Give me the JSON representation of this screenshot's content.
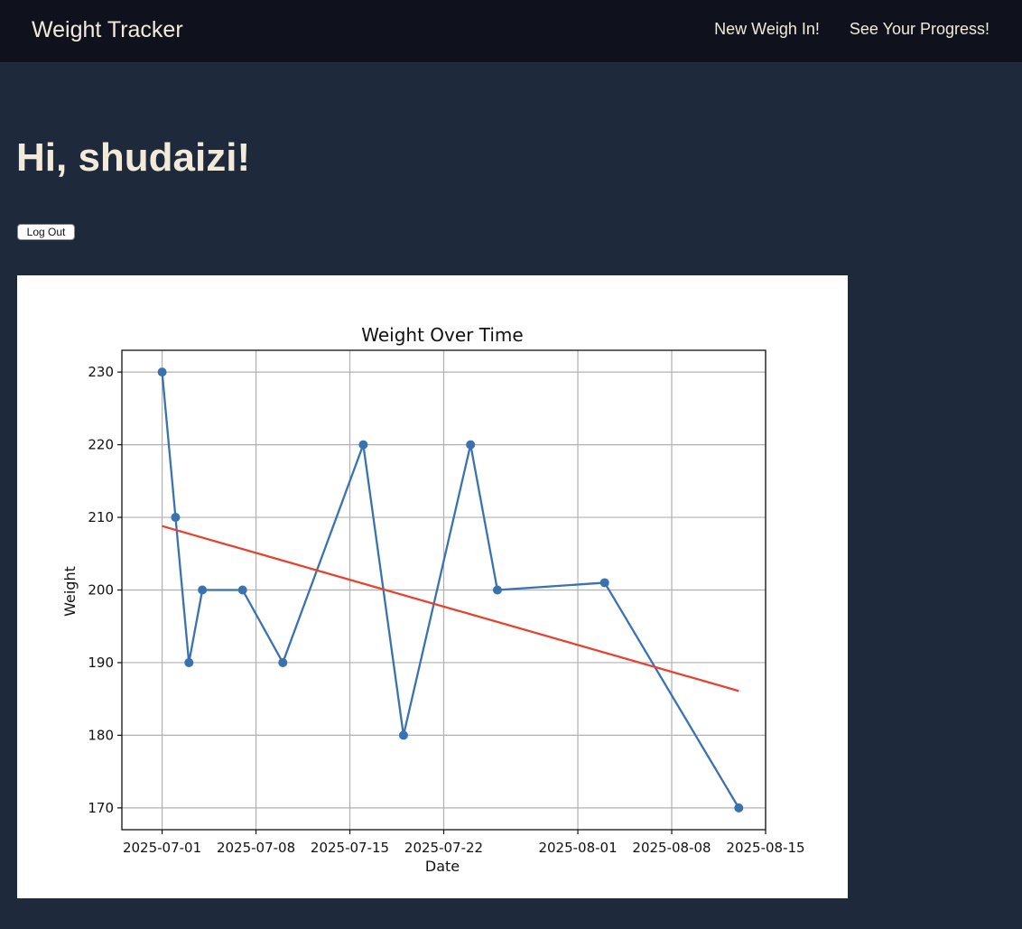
{
  "navbar": {
    "brand": "Weight Tracker",
    "links": [
      {
        "label": "New Weigh In!"
      },
      {
        "label": "See Your Progress!"
      }
    ]
  },
  "main": {
    "greeting": "Hi, shudaizi!",
    "logout_label": "Log Out"
  },
  "chart_data": {
    "type": "line",
    "title": "Weight Over Time",
    "xlabel": "Date",
    "ylabel": "Weight",
    "xlim": [
      "2025-06-28",
      "2025-08-15"
    ],
    "ylim": [
      167,
      233
    ],
    "x_ticks": [
      "2025-07-01",
      "2025-07-08",
      "2025-07-15",
      "2025-07-22",
      "2025-08-01",
      "2025-08-08",
      "2025-08-15"
    ],
    "y_ticks": [
      170,
      180,
      190,
      200,
      210,
      220,
      230
    ],
    "grid": true,
    "series": [
      {
        "color": "#3a72b0",
        "marker": "circle",
        "points": [
          {
            "x": "2025-07-01",
            "y": 230
          },
          {
            "x": "2025-07-02",
            "y": 210
          },
          {
            "x": "2025-07-03",
            "y": 190
          },
          {
            "x": "2025-07-04",
            "y": 200
          },
          {
            "x": "2025-07-07",
            "y": 200
          },
          {
            "x": "2025-07-10",
            "y": 190
          },
          {
            "x": "2025-07-16",
            "y": 220
          },
          {
            "x": "2025-07-19",
            "y": 180
          },
          {
            "x": "2025-07-24",
            "y": 220
          },
          {
            "x": "2025-07-26",
            "y": 200
          },
          {
            "x": "2025-08-03",
            "y": 201
          },
          {
            "x": "2025-08-13",
            "y": 170
          }
        ]
      },
      {
        "color": "#e8412f",
        "marker": "none",
        "points": [
          {
            "x": "2025-07-01",
            "y": 208.8
          },
          {
            "x": "2025-08-13",
            "y": 186.1
          }
        ]
      }
    ]
  }
}
